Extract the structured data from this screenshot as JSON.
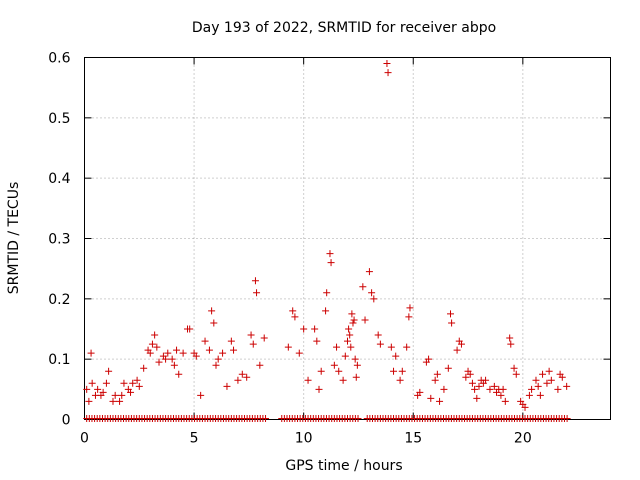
{
  "chart_data": {
    "type": "scatter",
    "title": "Day 193 of 2022, SRMTID for receiver abpo",
    "xlabel": "GPS time / hours",
    "ylabel": "SRMTID / TECUs",
    "xlim": [
      0,
      24
    ],
    "ylim": [
      0,
      0.6
    ],
    "xticks": [
      0,
      5,
      10,
      15,
      20
    ],
    "yticks": [
      0,
      0.1,
      0.2,
      0.3,
      0.4,
      0.5,
      0.6
    ],
    "xtick_labels": [
      "0",
      "5",
      "10",
      "15",
      "20"
    ],
    "ytick_labels": [
      "0",
      "0.1",
      "0.2",
      "0.3",
      "0.4",
      "0.5",
      "0.6"
    ],
    "grid": true,
    "marker": "+",
    "color": "#cc0000",
    "zero_bands": [
      [
        0.1,
        8.3
      ],
      [
        9.0,
        12.5
      ],
      [
        12.9,
        22.1
      ]
    ],
    "series": [
      {
        "name": "abpo",
        "points": [
          [
            0.1,
            0.05
          ],
          [
            0.2,
            0.03
          ],
          [
            0.3,
            0.11
          ],
          [
            0.35,
            0.06
          ],
          [
            0.5,
            0.04
          ],
          [
            0.6,
            0.05
          ],
          [
            0.75,
            0.04
          ],
          [
            0.85,
            0.045
          ],
          [
            1.0,
            0.06
          ],
          [
            1.1,
            0.08
          ],
          [
            1.3,
            0.03
          ],
          [
            1.4,
            0.04
          ],
          [
            1.6,
            0.03
          ],
          [
            1.7,
            0.04
          ],
          [
            1.8,
            0.06
          ],
          [
            2.0,
            0.05
          ],
          [
            2.1,
            0.045
          ],
          [
            2.2,
            0.06
          ],
          [
            2.4,
            0.065
          ],
          [
            2.5,
            0.055
          ],
          [
            2.7,
            0.085
          ],
          [
            2.9,
            0.115
          ],
          [
            3.0,
            0.11
          ],
          [
            3.1,
            0.125
          ],
          [
            3.2,
            0.14
          ],
          [
            3.3,
            0.12
          ],
          [
            3.4,
            0.095
          ],
          [
            3.6,
            0.105
          ],
          [
            3.7,
            0.1
          ],
          [
            3.8,
            0.11
          ],
          [
            4.0,
            0.1
          ],
          [
            4.1,
            0.09
          ],
          [
            4.2,
            0.115
          ],
          [
            4.3,
            0.075
          ],
          [
            4.5,
            0.11
          ],
          [
            4.7,
            0.15
          ],
          [
            4.8,
            0.15
          ],
          [
            5.0,
            0.11
          ],
          [
            5.1,
            0.105
          ],
          [
            5.3,
            0.04
          ],
          [
            5.5,
            0.13
          ],
          [
            5.7,
            0.115
          ],
          [
            5.8,
            0.18
          ],
          [
            5.9,
            0.16
          ],
          [
            6.0,
            0.09
          ],
          [
            6.1,
            0.1
          ],
          [
            6.3,
            0.11
          ],
          [
            6.5,
            0.055
          ],
          [
            6.7,
            0.13
          ],
          [
            6.8,
            0.115
          ],
          [
            7.0,
            0.065
          ],
          [
            7.2,
            0.075
          ],
          [
            7.4,
            0.07
          ],
          [
            7.6,
            0.14
          ],
          [
            7.7,
            0.125
          ],
          [
            7.8,
            0.23
          ],
          [
            7.85,
            0.21
          ],
          [
            8.0,
            0.09
          ],
          [
            8.2,
            0.135
          ],
          [
            9.3,
            0.12
          ],
          [
            9.5,
            0.18
          ],
          [
            9.6,
            0.17
          ],
          [
            9.8,
            0.11
          ],
          [
            10.0,
            0.15
          ],
          [
            10.2,
            0.065
          ],
          [
            10.5,
            0.15
          ],
          [
            10.6,
            0.13
          ],
          [
            10.7,
            0.05
          ],
          [
            10.8,
            0.08
          ],
          [
            11.0,
            0.18
          ],
          [
            11.05,
            0.21
          ],
          [
            11.2,
            0.275
          ],
          [
            11.25,
            0.26
          ],
          [
            11.4,
            0.09
          ],
          [
            11.5,
            0.12
          ],
          [
            11.6,
            0.08
          ],
          [
            11.8,
            0.065
          ],
          [
            11.9,
            0.105
          ],
          [
            12.0,
            0.13
          ],
          [
            12.05,
            0.15
          ],
          [
            12.1,
            0.14
          ],
          [
            12.15,
            0.12
          ],
          [
            12.2,
            0.175
          ],
          [
            12.25,
            0.16
          ],
          [
            12.3,
            0.165
          ],
          [
            12.35,
            0.1
          ],
          [
            12.4,
            0.07
          ],
          [
            12.45,
            0.09
          ],
          [
            12.7,
            0.22
          ],
          [
            12.8,
            0.165
          ],
          [
            13.0,
            0.245
          ],
          [
            13.1,
            0.21
          ],
          [
            13.2,
            0.2
          ],
          [
            13.4,
            0.14
          ],
          [
            13.5,
            0.125
          ],
          [
            13.8,
            0.59
          ],
          [
            13.85,
            0.575
          ],
          [
            14.0,
            0.12
          ],
          [
            14.1,
            0.08
          ],
          [
            14.2,
            0.105
          ],
          [
            14.4,
            0.065
          ],
          [
            14.5,
            0.08
          ],
          [
            14.7,
            0.12
          ],
          [
            14.8,
            0.17
          ],
          [
            14.85,
            0.185
          ],
          [
            15.2,
            0.04
          ],
          [
            15.3,
            0.045
          ],
          [
            15.6,
            0.095
          ],
          [
            15.7,
            0.1
          ],
          [
            15.8,
            0.035
          ],
          [
            16.0,
            0.065
          ],
          [
            16.1,
            0.075
          ],
          [
            16.2,
            0.03
          ],
          [
            16.4,
            0.05
          ],
          [
            16.6,
            0.085
          ],
          [
            16.7,
            0.175
          ],
          [
            16.75,
            0.16
          ],
          [
            17.0,
            0.115
          ],
          [
            17.1,
            0.13
          ],
          [
            17.2,
            0.125
          ],
          [
            17.4,
            0.07
          ],
          [
            17.5,
            0.08
          ],
          [
            17.6,
            0.075
          ],
          [
            17.7,
            0.06
          ],
          [
            17.8,
            0.05
          ],
          [
            17.9,
            0.035
          ],
          [
            18.0,
            0.055
          ],
          [
            18.1,
            0.065
          ],
          [
            18.2,
            0.06
          ],
          [
            18.3,
            0.065
          ],
          [
            18.5,
            0.05
          ],
          [
            18.7,
            0.055
          ],
          [
            18.8,
            0.045
          ],
          [
            18.9,
            0.05
          ],
          [
            19.0,
            0.04
          ],
          [
            19.1,
            0.05
          ],
          [
            19.2,
            0.03
          ],
          [
            19.4,
            0.135
          ],
          [
            19.45,
            0.125
          ],
          [
            19.6,
            0.085
          ],
          [
            19.7,
            0.075
          ],
          [
            19.9,
            0.03
          ],
          [
            20.0,
            0.025
          ],
          [
            20.1,
            0.02
          ],
          [
            20.3,
            0.04
          ],
          [
            20.4,
            0.05
          ],
          [
            20.6,
            0.065
          ],
          [
            20.7,
            0.055
          ],
          [
            20.8,
            0.04
          ],
          [
            20.9,
            0.075
          ],
          [
            21.1,
            0.06
          ],
          [
            21.2,
            0.08
          ],
          [
            21.3,
            0.065
          ],
          [
            21.6,
            0.05
          ],
          [
            21.7,
            0.075
          ],
          [
            21.8,
            0.07
          ],
          [
            22.0,
            0.055
          ]
        ]
      }
    ]
  }
}
